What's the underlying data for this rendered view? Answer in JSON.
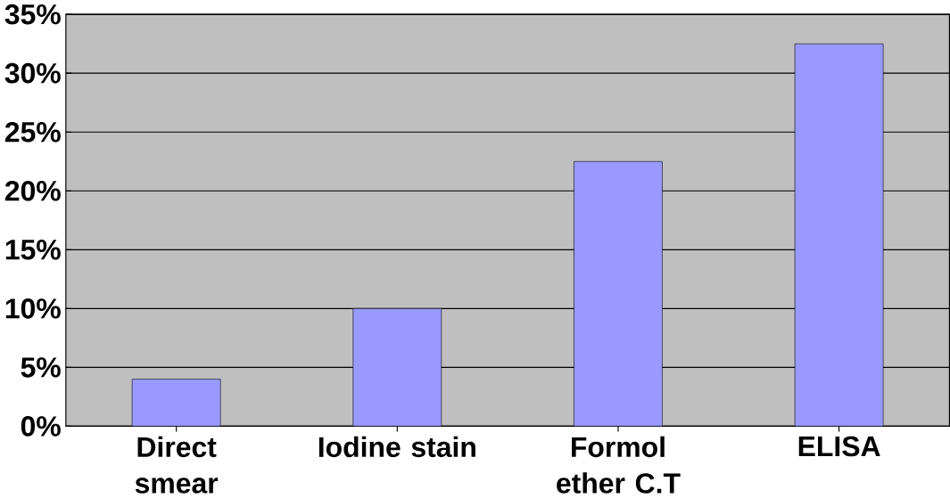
{
  "chart_data": {
    "type": "bar",
    "categories": [
      "Direct smear",
      "Iodine stain",
      "Formol ether C.T",
      "ELISA"
    ],
    "values": [
      4,
      10,
      22.5,
      32.5
    ],
    "color": "#9999ff",
    "ylim": [
      0,
      35
    ],
    "yticks": [
      {
        "value": 0,
        "label": "0%"
      },
      {
        "value": 5,
        "label": "5%"
      },
      {
        "value": 10,
        "label": "10%"
      },
      {
        "value": 15,
        "label": "15%"
      },
      {
        "value": 20,
        "label": "20%"
      },
      {
        "value": 25,
        "label": "25%"
      },
      {
        "value": 30,
        "label": "30%"
      },
      {
        "value": 35,
        "label": "35%"
      }
    ],
    "grid": "y"
  }
}
